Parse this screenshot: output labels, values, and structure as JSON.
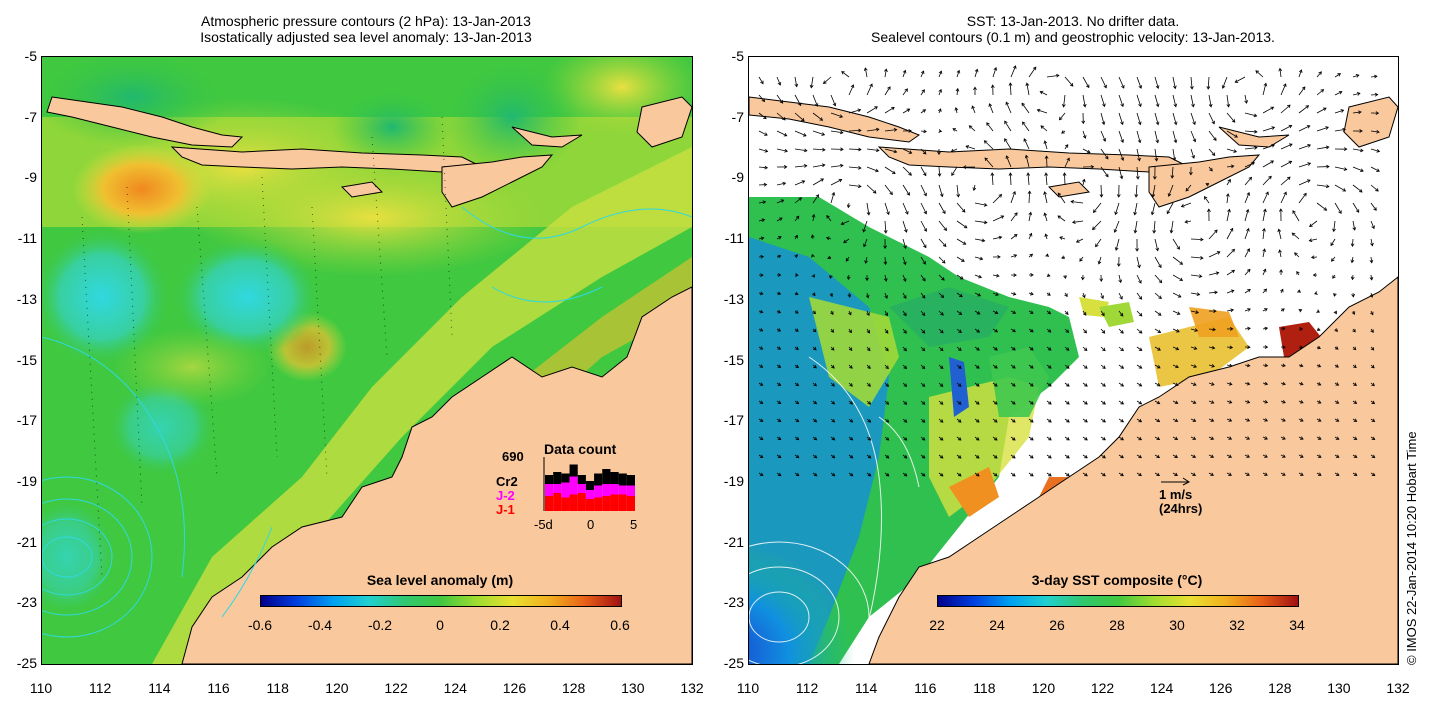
{
  "left_panel": {
    "title_line1": "Atmospheric pressure contours (2 hPa): 13-Jan-2013",
    "title_line2": "Isostatically adjusted sea level anomaly: 13-Jan-2013",
    "colorbar": {
      "title": "Sea level anomaly (m)",
      "labels": [
        "-0.6",
        "-0.4",
        "-0.2",
        "0",
        "0.2",
        "0.4",
        "0.6"
      ],
      "min": -0.6,
      "max": 0.6
    },
    "data_count": {
      "title": "Data count",
      "total": "690",
      "series_labels": [
        "Cr2",
        "J-2",
        "J-1"
      ],
      "series_colors": [
        "#000000",
        "#ff00ff",
        "#ff0000"
      ],
      "axis_labels": [
        "-5d",
        "0",
        "5"
      ],
      "j1": [
        10,
        12,
        9,
        11,
        12,
        8,
        9,
        10,
        11,
        11,
        10
      ],
      "j2": [
        8,
        6,
        10,
        12,
        6,
        6,
        8,
        8,
        7,
        6,
        7
      ],
      "cr2": [
        6,
        8,
        6,
        8,
        6,
        6,
        8,
        10,
        8,
        8,
        7
      ]
    }
  },
  "right_panel": {
    "title_line1": "SST: 13-Jan-2013. No drifter data.",
    "title_line2": "Sealevel contours (0.1 m) and geostrophic velocity: 13-Jan-2013.",
    "colorbar": {
      "title": "3-day SST composite (°C)",
      "labels": [
        "22",
        "24",
        "26",
        "28",
        "30",
        "32",
        "34"
      ],
      "min": 22,
      "max": 34
    },
    "velocity_scale_label": "1 m/s",
    "velocity_scale_note": "(24hrs)"
  },
  "axes": {
    "y_ticks": [
      "-5",
      "-7",
      "-9",
      "-11",
      "-13",
      "-15",
      "-17",
      "-19",
      "-21",
      "-23",
      "-25"
    ],
    "x_ticks": [
      "110",
      "112",
      "114",
      "116",
      "118",
      "120",
      "122",
      "124",
      "126",
      "128",
      "130",
      "132"
    ],
    "lat_range": [
      -25,
      -5
    ],
    "lon_range": [
      110,
      132
    ]
  },
  "copyright": "© IMOS 22-Jan-2014 10:20 Hobart Time",
  "colors": {
    "land": "#f9c89c",
    "sea_green": "#3cc83c",
    "sea_cyan": "#30d8d8",
    "sea_yellow": "#d8e040",
    "sea_orange": "#f0a020"
  }
}
